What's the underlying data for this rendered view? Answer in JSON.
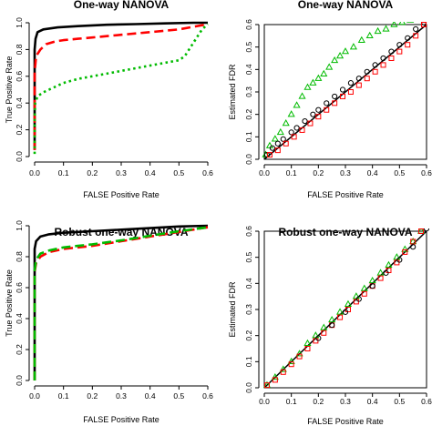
{
  "chart_data": [
    {
      "type": "line",
      "title": "One-way NANOVA",
      "xlabel": "FALSE Positive Rate",
      "ylabel": "True Positive Rate",
      "xlim": [
        0,
        0.6
      ],
      "ylim": [
        0,
        1
      ],
      "xticks": [
        "0.0",
        "0.1",
        "0.2",
        "0.3",
        "0.4",
        "0.5",
        "0.6"
      ],
      "yticks": [
        "0.0",
        "0.2",
        "0.4",
        "0.6",
        "0.8",
        "1.0"
      ],
      "series": [
        {
          "color": "#000000",
          "dash": "solid",
          "x": [
            0,
            0,
            0.003,
            0.01,
            0.03,
            0.08,
            0.15,
            0.25,
            0.35,
            0.45,
            0.55,
            0.6
          ],
          "y": [
            0.05,
            0.8,
            0.88,
            0.93,
            0.95,
            0.965,
            0.975,
            0.985,
            0.99,
            0.995,
            1.0,
            1.0
          ]
        },
        {
          "color": "#ff0000",
          "dash": "dashed",
          "x": [
            0,
            0,
            0.005,
            0.02,
            0.04,
            0.07,
            0.1,
            0.15,
            0.2,
            0.3,
            0.4,
            0.5,
            0.55,
            0.6
          ],
          "y": [
            0.05,
            0.63,
            0.75,
            0.8,
            0.84,
            0.86,
            0.87,
            0.88,
            0.89,
            0.91,
            0.93,
            0.95,
            0.97,
            0.99
          ]
        },
        {
          "color": "#00bb00",
          "dash": "dotted",
          "x": [
            0,
            0,
            0.002,
            0.01,
            0.03,
            0.05,
            0.1,
            0.15,
            0.2,
            0.25,
            0.3,
            0.35,
            0.4,
            0.45,
            0.5,
            0.52,
            0.55,
            0.58,
            0.6
          ],
          "y": [
            0.02,
            0.28,
            0.4,
            0.45,
            0.48,
            0.5,
            0.55,
            0.58,
            0.6,
            0.62,
            0.64,
            0.66,
            0.68,
            0.7,
            0.72,
            0.75,
            0.85,
            0.95,
            0.99
          ]
        }
      ]
    },
    {
      "type": "scatter",
      "title": "One-way NANOVA",
      "xlabel": "FALSE Positive Rate",
      "ylabel": "Estimated FDR",
      "xlim": [
        0,
        0.6
      ],
      "ylim": [
        0,
        0.6
      ],
      "xticks": [
        "0.0",
        "0.1",
        "0.2",
        "0.3",
        "0.4",
        "0.5",
        "0.6"
      ],
      "yticks": [
        "0.0",
        "0.1",
        "0.2",
        "0.3",
        "0.4",
        "0.5",
        "0.6"
      ],
      "reference_line": {
        "color": "#000000",
        "x": [
          0,
          0.6
        ],
        "y": [
          0,
          0.6
        ]
      },
      "series": [
        {
          "color": "#00bb00",
          "marker": "triangle",
          "x": [
            0.005,
            0.02,
            0.04,
            0.06,
            0.08,
            0.1,
            0.12,
            0.14,
            0.16,
            0.18,
            0.2,
            0.22,
            0.24,
            0.26,
            0.28,
            0.3,
            0.33,
            0.36,
            0.39,
            0.42,
            0.45,
            0.48,
            0.51,
            0.54,
            0.56
          ],
          "y": [
            0.02,
            0.06,
            0.09,
            0.12,
            0.16,
            0.2,
            0.24,
            0.28,
            0.32,
            0.34,
            0.36,
            0.38,
            0.41,
            0.44,
            0.46,
            0.48,
            0.5,
            0.53,
            0.55,
            0.57,
            0.58,
            0.6,
            0.61,
            0.62,
            0.63
          ]
        },
        {
          "color": "#000000",
          "marker": "circle",
          "x": [
            0.01,
            0.03,
            0.05,
            0.07,
            0.1,
            0.12,
            0.15,
            0.18,
            0.2,
            0.23,
            0.26,
            0.29,
            0.32,
            0.35,
            0.38,
            0.41,
            0.44,
            0.47,
            0.5,
            0.53,
            0.56,
            0.59
          ],
          "y": [
            0.02,
            0.05,
            0.07,
            0.09,
            0.12,
            0.14,
            0.17,
            0.2,
            0.22,
            0.25,
            0.28,
            0.31,
            0.34,
            0.36,
            0.39,
            0.42,
            0.45,
            0.48,
            0.51,
            0.54,
            0.58,
            0.61
          ]
        },
        {
          "color": "#ff0000",
          "marker": "square",
          "x": [
            0.02,
            0.05,
            0.08,
            0.11,
            0.14,
            0.17,
            0.2,
            0.23,
            0.26,
            0.29,
            0.32,
            0.35,
            0.38,
            0.41,
            0.44,
            0.47,
            0.5,
            0.53,
            0.56,
            0.59
          ],
          "y": [
            0.02,
            0.04,
            0.07,
            0.1,
            0.13,
            0.16,
            0.19,
            0.22,
            0.25,
            0.28,
            0.3,
            0.33,
            0.36,
            0.39,
            0.42,
            0.45,
            0.48,
            0.51,
            0.55,
            0.6
          ]
        }
      ]
    },
    {
      "type": "line",
      "title": "Robust one-way NANOVA",
      "xlabel": "FALSE Positive Rate",
      "ylabel": "True Positive Rate",
      "xlim": [
        0,
        0.6
      ],
      "ylim": [
        0,
        1
      ],
      "xticks": [
        "0.0",
        "0.1",
        "0.2",
        "0.3",
        "0.4",
        "0.5",
        "0.6"
      ],
      "yticks": [
        "0.0",
        "0.2",
        "0.4",
        "0.6",
        "0.8",
        "1.0"
      ],
      "series": [
        {
          "color": "#000000",
          "dash": "solid",
          "x": [
            0,
            0,
            0.005,
            0.02,
            0.05,
            0.1,
            0.2,
            0.3,
            0.4,
            0.5,
            0.6
          ],
          "y": [
            0.0,
            0.85,
            0.9,
            0.93,
            0.945,
            0.955,
            0.965,
            0.975,
            0.985,
            0.995,
            1.0
          ]
        },
        {
          "color": "#ff0000",
          "dash": "dashed",
          "x": [
            0,
            0,
            0.005,
            0.02,
            0.05,
            0.1,
            0.15,
            0.2,
            0.3,
            0.4,
            0.5,
            0.6
          ],
          "y": [
            0.0,
            0.7,
            0.76,
            0.8,
            0.83,
            0.85,
            0.86,
            0.87,
            0.9,
            0.93,
            0.96,
            0.99
          ]
        },
        {
          "color": "#00bb00",
          "dash": "dashed",
          "x": [
            0,
            0,
            0.005,
            0.02,
            0.05,
            0.1,
            0.15,
            0.2,
            0.3,
            0.4,
            0.5,
            0.6
          ],
          "y": [
            0.0,
            0.71,
            0.78,
            0.82,
            0.84,
            0.86,
            0.87,
            0.88,
            0.905,
            0.935,
            0.965,
            0.99
          ]
        }
      ]
    },
    {
      "type": "scatter",
      "title": "Robust one-way NANOVA",
      "xlabel": "FALSE Positive Rate",
      "ylabel": "Estimated FDR",
      "xlim": [
        0,
        0.6
      ],
      "ylim": [
        0,
        0.6
      ],
      "xticks": [
        "0.0",
        "0.1",
        "0.2",
        "0.3",
        "0.4",
        "0.5",
        "0.6"
      ],
      "yticks": [
        "0.0",
        "0.1",
        "0.2",
        "0.3",
        "0.4",
        "0.5",
        "0.6"
      ],
      "reference_line": {
        "color": "#000000",
        "x": [
          0,
          0.6
        ],
        "y": [
          0,
          0.6
        ]
      },
      "series": [
        {
          "color": "#00bb00",
          "marker": "triangle",
          "x": [
            0.01,
            0.04,
            0.07,
            0.1,
            0.13,
            0.16,
            0.19,
            0.22,
            0.25,
            0.28,
            0.31,
            0.34,
            0.37,
            0.4,
            0.43,
            0.46,
            0.49,
            0.52,
            0.55,
            0.58,
            0.6
          ],
          "y": [
            0.01,
            0.04,
            0.07,
            0.1,
            0.13,
            0.17,
            0.2,
            0.23,
            0.26,
            0.29,
            0.32,
            0.35,
            0.38,
            0.41,
            0.44,
            0.47,
            0.5,
            0.53,
            0.56,
            0.6,
            0.63
          ]
        },
        {
          "color": "#ff0000",
          "marker": "square",
          "x": [
            0.01,
            0.04,
            0.07,
            0.1,
            0.13,
            0.16,
            0.19,
            0.22,
            0.25,
            0.28,
            0.31,
            0.34,
            0.37,
            0.4,
            0.43,
            0.46,
            0.49,
            0.52,
            0.55,
            0.58,
            0.61
          ],
          "y": [
            0.01,
            0.03,
            0.06,
            0.09,
            0.12,
            0.15,
            0.18,
            0.21,
            0.24,
            0.27,
            0.3,
            0.33,
            0.36,
            0.39,
            0.42,
            0.45,
            0.48,
            0.52,
            0.56,
            0.6,
            0.63
          ]
        },
        {
          "color": "#000000",
          "marker": "circle",
          "x": [
            0.2,
            0.25,
            0.3,
            0.35,
            0.4,
            0.45,
            0.5,
            0.55,
            0.6
          ],
          "y": [
            0.19,
            0.24,
            0.29,
            0.34,
            0.39,
            0.44,
            0.49,
            0.54,
            0.61
          ]
        }
      ]
    }
  ]
}
